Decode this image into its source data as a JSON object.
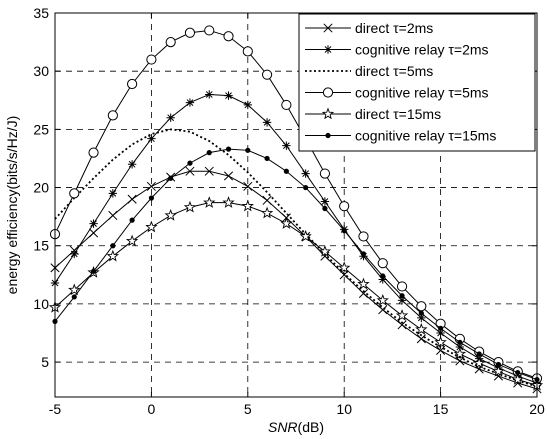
{
  "chart_data": {
    "type": "line",
    "title": "",
    "xlabel": {
      "italic": "SNR",
      "unit": "(dB)"
    },
    "ylabel": "energy efficiency(bits/s/Hz/J)",
    "xlim": [
      -5,
      20
    ],
    "ylim": [
      2,
      35
    ],
    "xticks": [
      -5,
      0,
      5,
      10,
      15,
      20
    ],
    "yticks": [
      5,
      10,
      15,
      20,
      25,
      30,
      35
    ],
    "grid": true,
    "legend_position": "top-right",
    "x": [
      -5,
      -4,
      -3,
      -2,
      -1,
      0,
      1,
      2,
      3,
      4,
      5,
      6,
      7,
      8,
      9,
      10,
      11,
      12,
      13,
      14,
      15,
      16,
      17,
      18,
      19,
      20
    ],
    "series": [
      {
        "name": "direct τ=2ms",
        "marker": "x",
        "line_style": "solid",
        "values": [
          13.1,
          14.6,
          16.1,
          17.6,
          19.0,
          20.1,
          20.9,
          21.4,
          21.4,
          21.0,
          20.1,
          18.9,
          17.4,
          15.8,
          14.1,
          12.5,
          10.9,
          9.5,
          8.2,
          7.0,
          6.0,
          5.1,
          4.4,
          3.8,
          3.2,
          2.7
        ]
      },
      {
        "name": "cognitive relay τ=2ms",
        "marker": "asterisk",
        "line_style": "solid",
        "values": [
          11.8,
          14.3,
          16.9,
          19.5,
          22.0,
          24.2,
          26.0,
          27.3,
          28.0,
          27.9,
          27.1,
          25.6,
          23.6,
          21.2,
          18.8,
          16.4,
          14.1,
          12.1,
          10.3,
          8.8,
          7.5,
          6.3,
          5.3,
          4.5,
          3.8,
          3.2
        ]
      },
      {
        "name": "direct τ=5ms",
        "marker": "none",
        "line_style": "dotted",
        "values": [
          17.3,
          19.1,
          20.8,
          22.4,
          23.7,
          24.6,
          25.0,
          24.8,
          24.0,
          22.8,
          21.3,
          19.6,
          17.8,
          16.0,
          14.3,
          12.6,
          11.1,
          9.7,
          8.4,
          7.3,
          6.3,
          5.4,
          4.6,
          4.0,
          3.4,
          2.9
        ]
      },
      {
        "name": "cognitive relay τ=5ms",
        "marker": "circle",
        "line_style": "solid",
        "values": [
          16.0,
          19.5,
          23.0,
          26.2,
          28.9,
          31.0,
          32.5,
          33.3,
          33.5,
          33.0,
          31.7,
          29.7,
          27.1,
          24.2,
          21.2,
          18.4,
          15.8,
          13.5,
          11.5,
          9.8,
          8.3,
          7.0,
          5.9,
          5.0,
          4.2,
          3.6
        ]
      },
      {
        "name": "direct τ=15ms",
        "marker": "star",
        "line_style": "solid",
        "values": [
          9.7,
          11.2,
          12.7,
          14.1,
          15.4,
          16.6,
          17.6,
          18.3,
          18.7,
          18.7,
          18.4,
          17.8,
          16.9,
          15.8,
          14.5,
          13.1,
          11.7,
          10.3,
          9.0,
          7.8,
          6.7,
          5.7,
          4.9,
          4.2,
          3.5,
          3.0
        ]
      },
      {
        "name": "cognitive relay τ=15ms",
        "marker": "dot",
        "line_style": "solid",
        "values": [
          8.5,
          10.6,
          12.8,
          15.0,
          17.2,
          19.1,
          20.8,
          22.1,
          23.0,
          23.3,
          23.2,
          22.5,
          21.4,
          20.0,
          18.2,
          16.3,
          14.3,
          12.4,
          10.7,
          9.2,
          7.9,
          6.7,
          5.7,
          4.8,
          4.1,
          3.5
        ]
      }
    ],
    "colors": {
      "line": "#000000",
      "grid": "#000000",
      "background": "#ffffff"
    }
  }
}
